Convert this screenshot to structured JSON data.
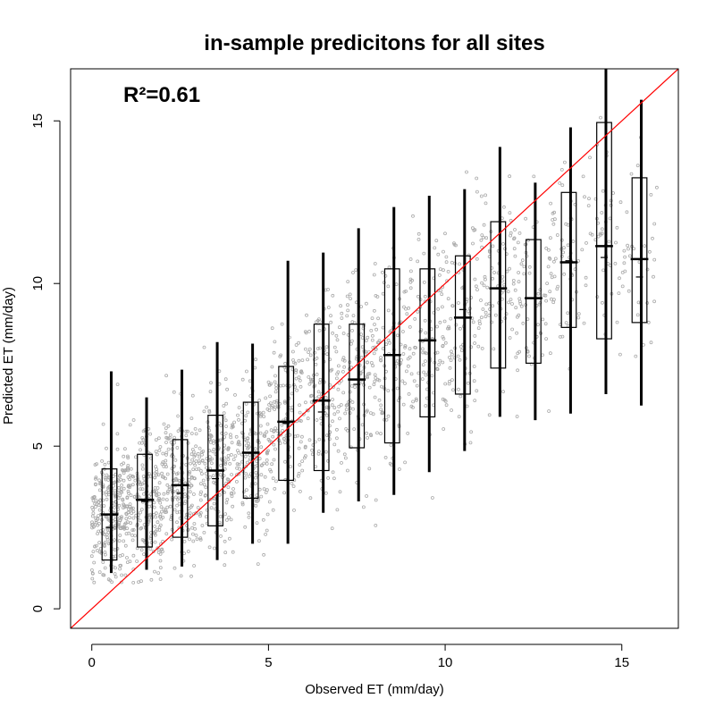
{
  "chart_data": {
    "type": "scatter",
    "title": "in-sample predicitons for all sites",
    "xlabel": "Observed ET (mm/day)",
    "ylabel": "Predicted ET (mm/day)",
    "annotation": "R²=0.61",
    "xlim": [
      -0.6,
      16.6
    ],
    "ylim": [
      -0.6,
      16.6
    ],
    "x_ticks": [
      0,
      5,
      10,
      15
    ],
    "y_ticks": [
      0,
      5,
      10,
      15
    ],
    "grid": false,
    "colors": {
      "points": "#a9a9a9",
      "reference_line": "#ff0000",
      "boxes": "#000000"
    },
    "reference_line": {
      "slope": 1,
      "intercept": 0
    },
    "boxes": [
      {
        "x": 0.5,
        "whisker_low": 1.1,
        "q1": 1.5,
        "median": 2.9,
        "mean": 2.5,
        "q3": 4.3,
        "whisker_high": 7.3
      },
      {
        "x": 1.5,
        "whisker_low": 1.2,
        "q1": 1.9,
        "median": 3.35,
        "mean": 3.3,
        "q3": 4.75,
        "whisker_high": 6.5
      },
      {
        "x": 2.5,
        "whisker_low": 1.3,
        "q1": 2.2,
        "median": 3.8,
        "mean": 3.55,
        "q3": 5.2,
        "whisker_high": 7.35
      },
      {
        "x": 3.5,
        "whisker_low": 1.5,
        "q1": 2.55,
        "median": 4.25,
        "mean": 4.0,
        "q3": 5.95,
        "whisker_high": 8.2
      },
      {
        "x": 4.5,
        "whisker_low": 2.0,
        "q1": 3.4,
        "median": 4.8,
        "mean": 4.8,
        "q3": 6.35,
        "whisker_high": 8.15
      },
      {
        "x": 5.5,
        "whisker_low": 2.0,
        "q1": 3.95,
        "median": 5.75,
        "mean": 5.7,
        "q3": 7.45,
        "whisker_high": 10.7
      },
      {
        "x": 6.5,
        "whisker_low": 2.95,
        "q1": 4.25,
        "median": 6.4,
        "mean": 6.05,
        "q3": 8.75,
        "whisker_high": 10.95
      },
      {
        "x": 7.5,
        "whisker_low": 3.3,
        "q1": 4.95,
        "median": 7.05,
        "mean": 6.9,
        "q3": 8.75,
        "whisker_high": 11.7
      },
      {
        "x": 8.5,
        "whisker_low": 3.5,
        "q1": 5.1,
        "median": 7.8,
        "mean": 7.8,
        "q3": 10.45,
        "whisker_high": 12.35
      },
      {
        "x": 9.5,
        "whisker_low": 4.2,
        "q1": 5.9,
        "median": 8.25,
        "mean": 8.25,
        "q3": 10.45,
        "whisker_high": 12.7
      },
      {
        "x": 10.5,
        "whisker_low": 4.85,
        "q1": 6.6,
        "median": 8.95,
        "mean": 9.2,
        "q3": 10.85,
        "whisker_high": 12.9
      },
      {
        "x": 11.5,
        "whisker_low": 5.9,
        "q1": 7.4,
        "median": 9.85,
        "mean": 9.85,
        "q3": 11.9,
        "whisker_high": 14.2
      },
      {
        "x": 12.5,
        "whisker_low": 5.8,
        "q1": 7.55,
        "median": 9.55,
        "mean": 9.55,
        "q3": 11.35,
        "whisker_high": 13.1
      },
      {
        "x": 13.5,
        "whisker_low": 6.0,
        "q1": 8.65,
        "median": 10.65,
        "mean": 10.7,
        "q3": 12.8,
        "whisker_high": 14.8
      },
      {
        "x": 14.5,
        "whisker_low": 6.6,
        "q1": 8.3,
        "median": 11.15,
        "mean": 10.8,
        "q3": 14.95,
        "whisker_high": 16.6
      },
      {
        "x": 15.5,
        "whisker_low": 6.25,
        "q1": 8.8,
        "median": 10.75,
        "mean": 10.2,
        "q3": 13.25,
        "whisker_high": 15.65
      }
    ],
    "scatter_spread_sd": [
      1.4,
      1.4,
      1.5,
      1.6,
      1.6,
      1.8,
      2.0,
      2.0,
      2.1,
      2.2,
      2.2,
      2.1,
      2.0,
      2.1,
      2.5,
      2.3
    ]
  }
}
